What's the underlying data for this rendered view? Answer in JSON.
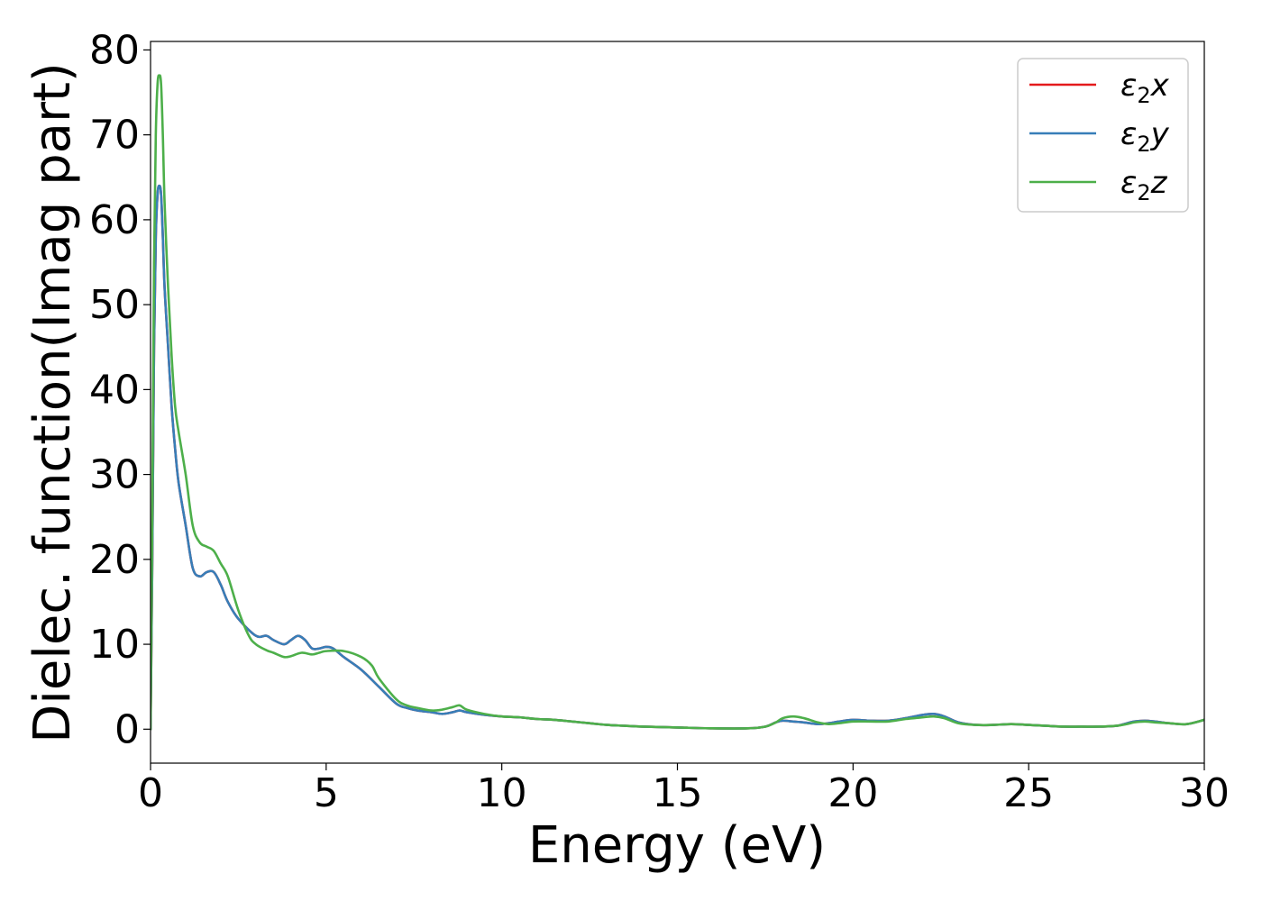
{
  "chart_data": {
    "type": "line",
    "title": "",
    "xlabel": "Energy (eV)",
    "ylabel": "Dielec. function(Imag part)",
    "xlim": [
      0,
      30
    ],
    "ylim": [
      -4,
      81
    ],
    "xticks": [
      0,
      5,
      10,
      15,
      20,
      25,
      30
    ],
    "yticks": [
      0,
      10,
      20,
      30,
      40,
      50,
      60,
      70,
      80
    ],
    "grid": false,
    "legend_position": "top-right",
    "series": [
      {
        "name": "ε2x",
        "legend_base": "ε",
        "legend_sub": "2",
        "legend_tail": "x",
        "color": "#e41a1c",
        "x": [
          0,
          0.05,
          0.1,
          0.15,
          0.2,
          0.25,
          0.3,
          0.35,
          0.4,
          0.5,
          0.6,
          0.7,
          0.8,
          1.0,
          1.2,
          1.4,
          1.6,
          1.8,
          2.0,
          2.2,
          2.5,
          3.0,
          3.3,
          3.5,
          3.8,
          4.0,
          4.2,
          4.4,
          4.6,
          4.8,
          5.0,
          5.2,
          5.5,
          6.0,
          6.5,
          7.0,
          7.3,
          7.6,
          8.0,
          8.3,
          8.6,
          8.8,
          9.0,
          9.5,
          10.0,
          10.5,
          11.0,
          11.5,
          12.0,
          12.5,
          13.0,
          13.5,
          14.0,
          15.0,
          16.0,
          17.0,
          17.5,
          17.8,
          18.0,
          18.3,
          18.6,
          19.0,
          19.3,
          19.6,
          20.0,
          20.5,
          21.0,
          21.5,
          22.0,
          22.3,
          22.6,
          23.0,
          23.5,
          24.0,
          24.5,
          25.0,
          25.5,
          26.0,
          26.5,
          27.0,
          27.5,
          27.8,
          28.0,
          28.3,
          28.6,
          29.0,
          29.5,
          30.0
        ],
        "y": [
          0,
          20,
          45,
          58,
          63,
          64,
          63,
          58,
          52,
          45,
          38,
          33,
          29,
          24,
          19,
          18,
          18.5,
          18.5,
          17,
          15,
          13,
          11,
          11,
          10.5,
          10,
          10.5,
          11,
          10.5,
          9.5,
          9.5,
          9.7,
          9.5,
          8.5,
          7,
          5,
          3,
          2.5,
          2.2,
          2,
          1.8,
          2,
          2.2,
          2,
          1.7,
          1.5,
          1.4,
          1.2,
          1.1,
          0.9,
          0.7,
          0.5,
          0.4,
          0.3,
          0.2,
          0.1,
          0.1,
          0.3,
          0.8,
          1,
          0.9,
          0.8,
          0.6,
          0.7,
          0.9,
          1.1,
          1,
          1,
          1.3,
          1.7,
          1.8,
          1.5,
          0.8,
          0.5,
          0.5,
          0.6,
          0.5,
          0.4,
          0.3,
          0.3,
          0.3,
          0.4,
          0.7,
          0.9,
          1,
          0.9,
          0.7,
          0.6,
          1.1
        ]
      },
      {
        "name": "ε2y",
        "legend_base": "ε",
        "legend_sub": "2",
        "legend_tail": "y",
        "color": "#377eb8",
        "x": [
          0,
          0.05,
          0.1,
          0.15,
          0.2,
          0.25,
          0.3,
          0.35,
          0.4,
          0.5,
          0.6,
          0.7,
          0.8,
          1.0,
          1.2,
          1.4,
          1.6,
          1.8,
          2.0,
          2.2,
          2.5,
          3.0,
          3.3,
          3.5,
          3.8,
          4.0,
          4.2,
          4.4,
          4.6,
          4.8,
          5.0,
          5.2,
          5.5,
          6.0,
          6.5,
          7.0,
          7.3,
          7.6,
          8.0,
          8.3,
          8.6,
          8.8,
          9.0,
          9.5,
          10.0,
          10.5,
          11.0,
          11.5,
          12.0,
          12.5,
          13.0,
          13.5,
          14.0,
          15.0,
          16.0,
          17.0,
          17.5,
          17.8,
          18.0,
          18.3,
          18.6,
          19.0,
          19.3,
          19.6,
          20.0,
          20.5,
          21.0,
          21.5,
          22.0,
          22.3,
          22.6,
          23.0,
          23.5,
          24.0,
          24.5,
          25.0,
          25.5,
          26.0,
          26.5,
          27.0,
          27.5,
          27.8,
          28.0,
          28.3,
          28.6,
          29.0,
          29.5,
          30.0
        ],
        "y": [
          0,
          20,
          45,
          58,
          63,
          64,
          63,
          58,
          52,
          45,
          38,
          33,
          29,
          24,
          19,
          18,
          18.5,
          18.5,
          17,
          15,
          13,
          11,
          11,
          10.5,
          10,
          10.5,
          11,
          10.5,
          9.5,
          9.5,
          9.7,
          9.5,
          8.5,
          7,
          5,
          3,
          2.5,
          2.2,
          2,
          1.8,
          2,
          2.2,
          2,
          1.7,
          1.5,
          1.4,
          1.2,
          1.1,
          0.9,
          0.7,
          0.5,
          0.4,
          0.3,
          0.2,
          0.1,
          0.1,
          0.3,
          0.8,
          1,
          0.9,
          0.8,
          0.6,
          0.7,
          0.9,
          1.1,
          1,
          1,
          1.3,
          1.7,
          1.8,
          1.5,
          0.8,
          0.5,
          0.5,
          0.6,
          0.5,
          0.4,
          0.3,
          0.3,
          0.3,
          0.4,
          0.7,
          0.9,
          1,
          0.9,
          0.7,
          0.6,
          1.1
        ]
      },
      {
        "name": "ε2z",
        "legend_base": "ε",
        "legend_sub": "2",
        "legend_tail": "z",
        "color": "#4daf4a",
        "x": [
          0,
          0.05,
          0.1,
          0.15,
          0.2,
          0.25,
          0.3,
          0.35,
          0.4,
          0.5,
          0.6,
          0.7,
          0.8,
          1.0,
          1.2,
          1.4,
          1.6,
          1.8,
          2.0,
          2.2,
          2.5,
          2.8,
          3.0,
          3.3,
          3.5,
          3.8,
          4.0,
          4.3,
          4.6,
          4.8,
          5.0,
          5.5,
          6.0,
          6.3,
          6.5,
          7.0,
          7.3,
          7.6,
          8.0,
          8.3,
          8.6,
          8.8,
          9.0,
          9.5,
          10.0,
          10.5,
          11.0,
          11.5,
          12.0,
          12.5,
          13.0,
          13.5,
          14.0,
          15.0,
          16.0,
          17.0,
          17.5,
          17.8,
          18.0,
          18.3,
          18.6,
          19.0,
          19.3,
          19.6,
          20.0,
          20.5,
          21.0,
          21.5,
          22.0,
          22.3,
          22.6,
          23.0,
          23.5,
          24.0,
          24.5,
          25.0,
          25.5,
          26.0,
          26.5,
          27.0,
          27.5,
          27.8,
          28.0,
          28.3,
          28.6,
          29.0,
          29.5,
          30.0
        ],
        "y": [
          0,
          25,
          55,
          70,
          76,
          77,
          76,
          70,
          62,
          52,
          44,
          38,
          35,
          30,
          24,
          22,
          21.5,
          21,
          19.5,
          18,
          14,
          11,
          10,
          9.3,
          9,
          8.5,
          8.6,
          9,
          8.8,
          9,
          9.2,
          9.2,
          8.5,
          7.5,
          6,
          3.5,
          2.8,
          2.5,
          2.2,
          2.3,
          2.6,
          2.8,
          2.3,
          1.8,
          1.5,
          1.4,
          1.2,
          1.1,
          0.9,
          0.7,
          0.5,
          0.4,
          0.3,
          0.2,
          0.1,
          0.1,
          0.3,
          0.8,
          1.3,
          1.5,
          1.3,
          0.8,
          0.6,
          0.7,
          0.9,
          0.9,
          0.9,
          1.2,
          1.4,
          1.5,
          1.3,
          0.7,
          0.5,
          0.5,
          0.6,
          0.5,
          0.4,
          0.3,
          0.3,
          0.3,
          0.4,
          0.6,
          0.8,
          0.9,
          0.8,
          0.7,
          0.6,
          1.1
        ]
      }
    ]
  }
}
